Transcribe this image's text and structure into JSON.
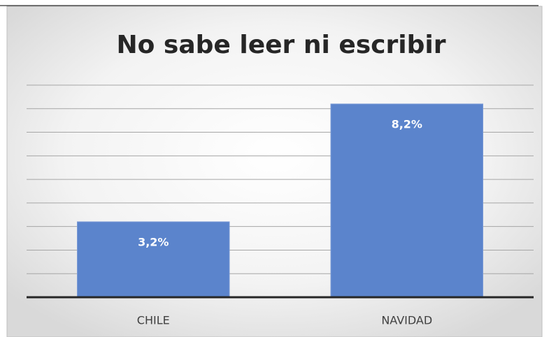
{
  "chart_data": {
    "type": "bar",
    "title": "No sabe leer ni escribir",
    "categories": [
      "CHILE",
      "NAVIDAD"
    ],
    "values": [
      3.2,
      8.2
    ],
    "value_labels": [
      "3,2%",
      "8,2%"
    ],
    "color": "#5b84cc",
    "ylim": [
      0,
      9
    ],
    "yticks": [
      0,
      1,
      2,
      3,
      4,
      5,
      6,
      7,
      8,
      9
    ],
    "grid": true
  }
}
